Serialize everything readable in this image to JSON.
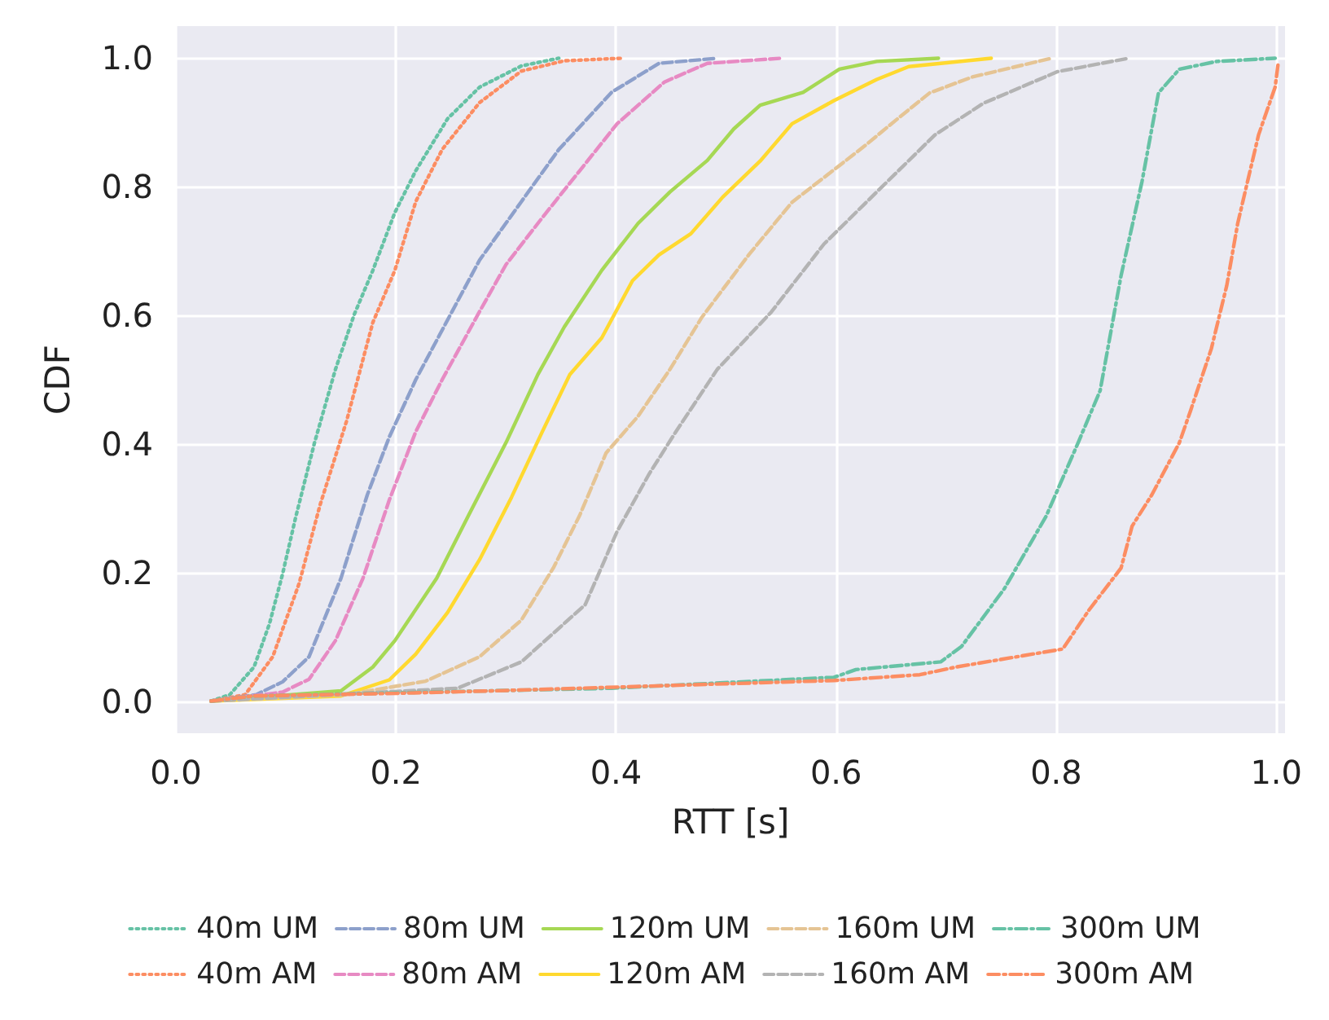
{
  "chart_data": {
    "type": "line",
    "xlabel": "RTT [s]",
    "ylabel": "CDF",
    "xlim": [
      0,
      1.008
    ],
    "ylim": [
      -0.05,
      1.05
    ],
    "xticks": [
      {
        "value": 0,
        "label": "0.0"
      },
      {
        "value": 0.2,
        "label": "0.2"
      },
      {
        "value": 0.4,
        "label": "0.4"
      },
      {
        "value": 0.6,
        "label": "0.6"
      },
      {
        "value": 0.8,
        "label": "0.8"
      },
      {
        "value": 1,
        "label": "1.0"
      }
    ],
    "yticks": [
      {
        "value": 0,
        "label": "0.0"
      },
      {
        "value": 0.2,
        "label": "0.2"
      },
      {
        "value": 0.4,
        "label": "0.4"
      },
      {
        "value": 0.6,
        "label": "0.6"
      },
      {
        "value": 0.8,
        "label": "0.8"
      },
      {
        "value": 1,
        "label": "1.0"
      }
    ],
    "grid": true,
    "legend": "bottom",
    "marker": "none",
    "series": [
      {
        "name": "40m UM",
        "color": "#66c2a5",
        "line_style": "dotted",
        "x": [
          0.032,
          0.049,
          0.071,
          0.085,
          0.097,
          0.109,
          0.126,
          0.145,
          0.162,
          0.179,
          0.199,
          0.218,
          0.247,
          0.276,
          0.314,
          0.348
        ],
        "values": [
          0,
          0.01,
          0.053,
          0.12,
          0.198,
          0.287,
          0.402,
          0.516,
          0.601,
          0.67,
          0.76,
          0.825,
          0.906,
          0.955,
          0.988,
          1.0
        ]
      },
      {
        "name": "40m AM",
        "color": "#fc8d62",
        "line_style": "dotted",
        "x": [
          0.032,
          0.063,
          0.088,
          0.112,
          0.131,
          0.155,
          0.179,
          0.199,
          0.218,
          0.242,
          0.276,
          0.314,
          0.353,
          0.406
        ],
        "values": [
          0,
          0.01,
          0.069,
          0.183,
          0.305,
          0.435,
          0.589,
          0.67,
          0.777,
          0.858,
          0.931,
          0.98,
          0.996,
          1.0
        ]
      },
      {
        "name": "80m UM",
        "color": "#8da0cb",
        "line_style": "dashed",
        "x": [
          0.032,
          0.073,
          0.097,
          0.121,
          0.15,
          0.174,
          0.194,
          0.218,
          0.251,
          0.276,
          0.314,
          0.348,
          0.396,
          0.439,
          0.492
        ],
        "values": [
          0,
          0.01,
          0.03,
          0.069,
          0.191,
          0.321,
          0.411,
          0.5,
          0.606,
          0.686,
          0.777,
          0.858,
          0.947,
          0.992,
          1.0
        ]
      },
      {
        "name": "80m AM",
        "color": "#e78ac3",
        "line_style": "dashed",
        "x": [
          0.032,
          0.097,
          0.121,
          0.145,
          0.17,
          0.194,
          0.218,
          0.242,
          0.276,
          0.3,
          0.333,
          0.367,
          0.401,
          0.444,
          0.483,
          0.55
        ],
        "values": [
          0,
          0.014,
          0.034,
          0.094,
          0.191,
          0.313,
          0.419,
          0.5,
          0.606,
          0.679,
          0.752,
          0.825,
          0.898,
          0.963,
          0.992,
          1.0
        ]
      },
      {
        "name": "120m UM",
        "color": "#a6d854",
        "line_style": "solid",
        "x": [
          0.032,
          0.15,
          0.179,
          0.199,
          0.237,
          0.266,
          0.3,
          0.329,
          0.353,
          0.387,
          0.42,
          0.449,
          0.483,
          0.507,
          0.531,
          0.57,
          0.603,
          0.637,
          0.693
        ],
        "values": [
          0,
          0.016,
          0.053,
          0.094,
          0.191,
          0.289,
          0.402,
          0.508,
          0.582,
          0.67,
          0.743,
          0.792,
          0.841,
          0.89,
          0.927,
          0.947,
          0.983,
          0.995,
          1.0
        ]
      },
      {
        "name": "120m AM",
        "color": "#ffd92f",
        "line_style": "solid",
        "x": [
          0.032,
          0.15,
          0.194,
          0.218,
          0.247,
          0.276,
          0.305,
          0.333,
          0.358,
          0.387,
          0.415,
          0.439,
          0.468,
          0.497,
          0.531,
          0.56,
          0.598,
          0.637,
          0.666,
          0.741
        ],
        "values": [
          0,
          0.008,
          0.033,
          0.073,
          0.138,
          0.22,
          0.317,
          0.419,
          0.508,
          0.565,
          0.654,
          0.694,
          0.727,
          0.784,
          0.84,
          0.898,
          0.934,
          0.967,
          0.987,
          1.0
        ]
      },
      {
        "name": "160m UM",
        "color": "#e5c494",
        "line_style": "dashed",
        "x": [
          0.032,
          0.155,
          0.227,
          0.276,
          0.314,
          0.343,
          0.367,
          0.391,
          0.42,
          0.449,
          0.478,
          0.521,
          0.56,
          0.603,
          0.627,
          0.656,
          0.685,
          0.724,
          0.796
        ],
        "values": [
          0,
          0.01,
          0.031,
          0.069,
          0.126,
          0.207,
          0.289,
          0.386,
          0.443,
          0.516,
          0.597,
          0.695,
          0.776,
          0.833,
          0.865,
          0.906,
          0.946,
          0.971,
          1.0
        ]
      },
      {
        "name": "160m AM",
        "color": "#b3b3b3",
        "line_style": "dashed",
        "x": [
          0.032,
          0.256,
          0.314,
          0.372,
          0.401,
          0.43,
          0.454,
          0.492,
          0.541,
          0.589,
          0.637,
          0.69,
          0.734,
          0.801,
          0.866
        ],
        "values": [
          0,
          0.02,
          0.061,
          0.15,
          0.264,
          0.353,
          0.418,
          0.516,
          0.605,
          0.711,
          0.792,
          0.881,
          0.93,
          0.979,
          1.0
        ]
      },
      {
        "name": "300m UM",
        "color": "#66c2a5",
        "line_style": "dashdot",
        "x": [
          0.032,
          0.07,
          0.396,
          0.598,
          0.618,
          0.695,
          0.714,
          0.753,
          0.791,
          0.82,
          0.84,
          0.859,
          0.878,
          0.893,
          0.912,
          0.946,
          0.999
        ],
        "values": [
          0,
          0.008,
          0.02,
          0.037,
          0.049,
          0.061,
          0.085,
          0.175,
          0.288,
          0.402,
          0.483,
          0.662,
          0.808,
          0.946,
          0.983,
          0.995,
          1.0
        ]
      },
      {
        "name": "300m AM",
        "color": "#fc8d62",
        "line_style": "dashdot",
        "x": [
          0.032,
          0.07,
          0.2,
          0.29,
          0.598,
          0.676,
          0.709,
          0.806,
          0.83,
          0.859,
          0.869,
          0.887,
          0.912,
          0.922,
          0.941,
          0.955,
          0.965,
          0.975,
          0.984,
          0.999,
          1.002
        ],
        "values": [
          0,
          0.008,
          0.012,
          0.016,
          0.032,
          0.041,
          0.053,
          0.081,
          0.142,
          0.207,
          0.272,
          0.321,
          0.402,
          0.451,
          0.548,
          0.646,
          0.743,
          0.816,
          0.881,
          0.955,
          0.995
        ]
      }
    ]
  }
}
